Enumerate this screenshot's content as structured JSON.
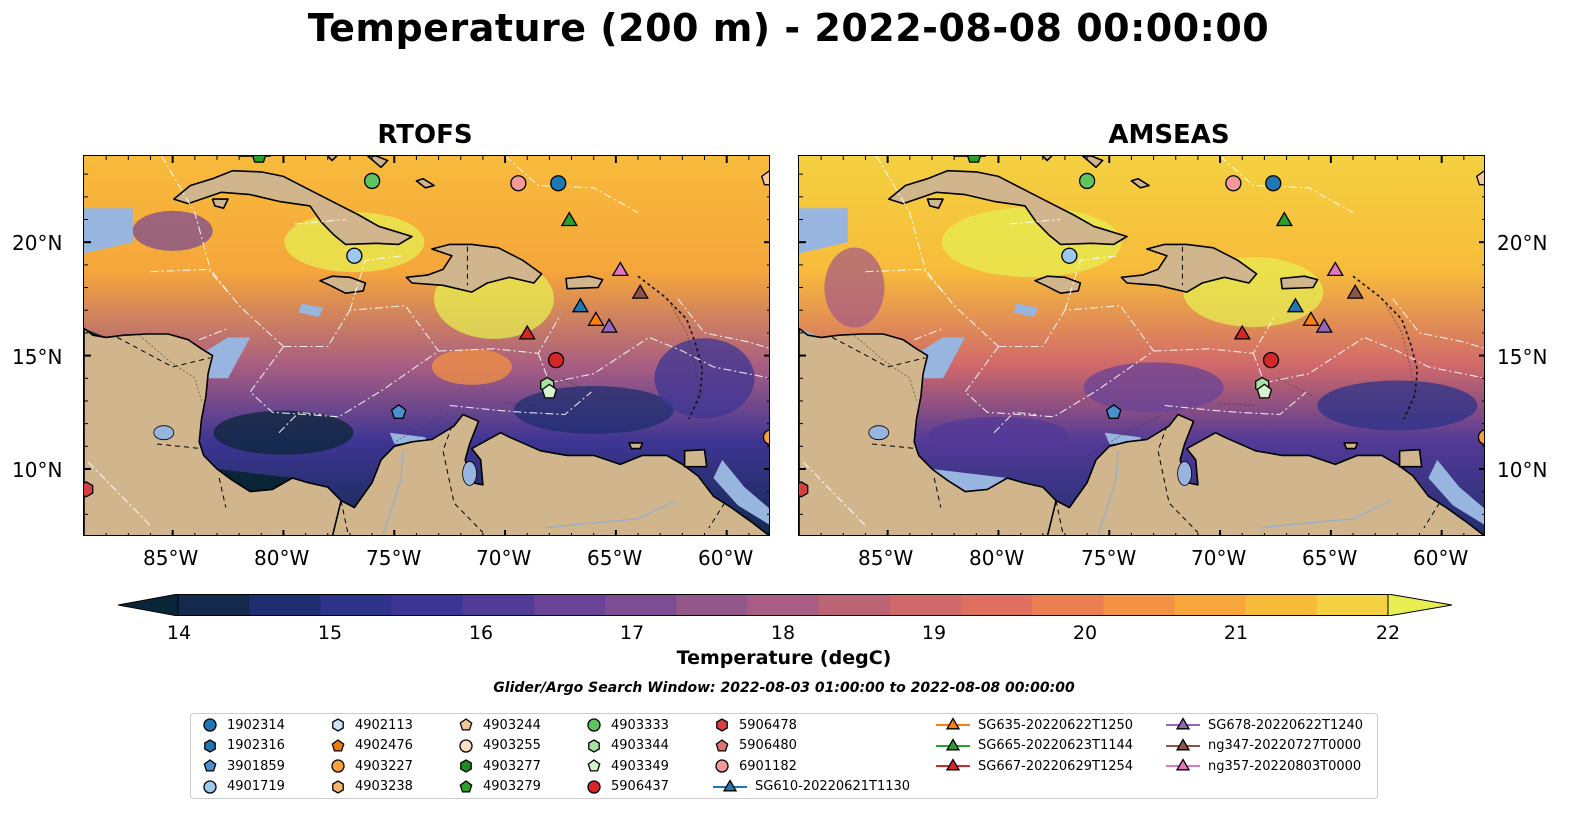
{
  "title": "Temperature (200 m) - 2022-08-08 00:00:00",
  "panels": [
    {
      "name": "RTOFS"
    },
    {
      "name": "AMSEAS"
    }
  ],
  "axes": {
    "lon_labels": [
      "85°W",
      "80°W",
      "75°W",
      "70°W",
      "65°W",
      "60°W"
    ],
    "lat_labels": [
      "20°N",
      "15°N",
      "10°N"
    ]
  },
  "colorbar": {
    "label": "Temperature (degC)",
    "ticks": [
      "14",
      "15",
      "16",
      "17",
      "18",
      "19",
      "20",
      "21",
      "22"
    ],
    "colors": [
      "#0b2538",
      "#132a4d",
      "#1f2e6f",
      "#2c3388",
      "#3d3594",
      "#523a97",
      "#6a4396",
      "#7e4c92",
      "#935789",
      "#a85e82",
      "#bc6376",
      "#d0696a",
      "#df7060",
      "#ea7f52",
      "#f39243",
      "#f6a63b",
      "#f7bb3b",
      "#f4d140",
      "#e6ee52"
    ]
  },
  "search_window": "Glider/Argo Search Window: 2022-08-03 01:00:00 to 2022-08-08 00:00:00",
  "legend": [
    {
      "label": "1902314",
      "marker": "circle",
      "color": "#1f77b4"
    },
    {
      "label": "1902316",
      "marker": "hexagon",
      "color": "#1f77b4"
    },
    {
      "label": "3901859",
      "marker": "pentagon",
      "color": "#4a90d0"
    },
    {
      "label": "4901719",
      "marker": "circle",
      "color": "#9dc9ec"
    },
    {
      "label": "4902113",
      "marker": "hexagon",
      "color": "#cfe3f5"
    },
    {
      "label": "4902476",
      "marker": "pentagon",
      "color": "#f07b12"
    },
    {
      "label": "4903227",
      "marker": "circle",
      "color": "#f7a23a"
    },
    {
      "label": "4903238",
      "marker": "hexagon",
      "color": "#f7b36a"
    },
    {
      "label": "4903244",
      "marker": "pentagon",
      "color": "#f7c897"
    },
    {
      "label": "4903255",
      "marker": "circle",
      "color": "#fde0c4"
    },
    {
      "label": "4903277",
      "marker": "hexagon",
      "color": "#1e8c1e"
    },
    {
      "label": "4903279",
      "marker": "pentagon",
      "color": "#2ca02c"
    },
    {
      "label": "4903333",
      "marker": "circle",
      "color": "#5fc45f"
    },
    {
      "label": "4903344",
      "marker": "hexagon",
      "color": "#a7e0a0"
    },
    {
      "label": "4903349",
      "marker": "pentagon",
      "color": "#d4f2d0"
    },
    {
      "label": "5906437",
      "marker": "circle",
      "color": "#d62728"
    },
    {
      "label": "5906478",
      "marker": "hexagon",
      "color": "#d64040"
    },
    {
      "label": "5906480",
      "marker": "pentagon",
      "color": "#e07272"
    },
    {
      "label": "6901182",
      "marker": "circle",
      "color": "#f29a9a"
    },
    {
      "label": "SG610-20220621T1130",
      "marker": "triangle",
      "color": "#1f77b4"
    },
    {
      "label": "SG635-20220622T1250",
      "marker": "triangle",
      "color": "#ff7f0e"
    },
    {
      "label": "SG665-20220623T1144",
      "marker": "triangle",
      "color": "#2ca02c"
    },
    {
      "label": "SG667-20220629T1254",
      "marker": "triangle",
      "color": "#d62728"
    },
    {
      "label": "SG678-20220622T1240",
      "marker": "triangle",
      "color": "#9467bd"
    },
    {
      "label": "ng347-20220727T0000",
      "marker": "triangle",
      "color": "#8c564b"
    },
    {
      "label": "ng357-20220803T0000",
      "marker": "triangle",
      "color": "#e377c2"
    }
  ]
}
